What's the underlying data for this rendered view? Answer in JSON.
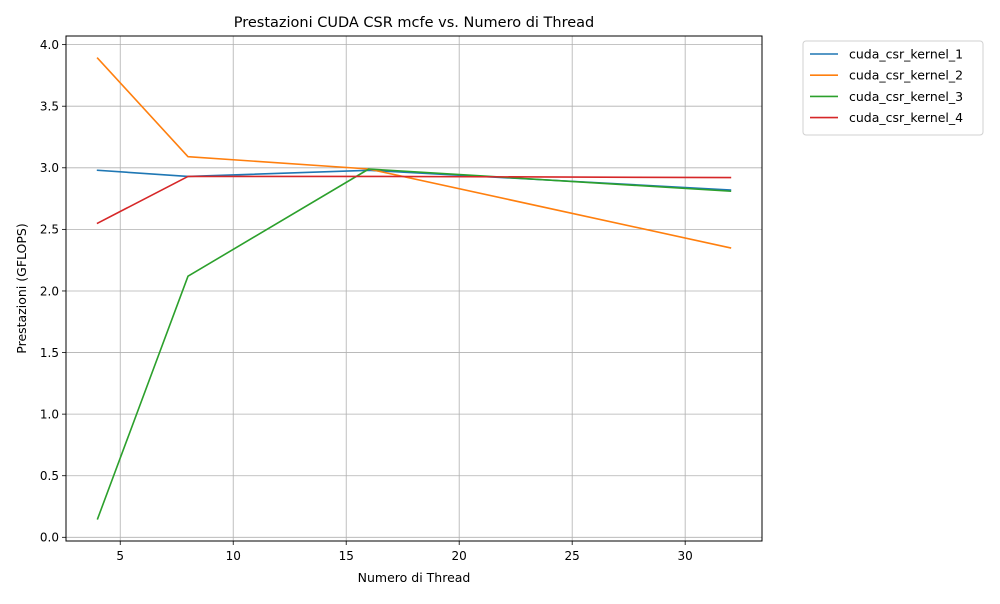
{
  "chart_data": {
    "type": "line",
    "title": "Prestazioni CUDA CSR mcfe vs. Numero di Thread",
    "xlabel": "Numero di Thread",
    "ylabel": "Prestazioni (GFLOPS)",
    "x": [
      4,
      8,
      16,
      32
    ],
    "xlim": [
      2.6,
      33.4
    ],
    "ylim": [
      -0.03,
      4.07
    ],
    "xticks": [
      5,
      10,
      15,
      20,
      25,
      30
    ],
    "yticks": [
      0.0,
      0.5,
      1.0,
      1.5,
      2.0,
      2.5,
      3.0,
      3.5,
      4.0
    ],
    "xtick_labels": [
      "5",
      "10",
      "15",
      "20",
      "25",
      "30"
    ],
    "ytick_labels": [
      "0.0",
      "0.5",
      "1.0",
      "1.5",
      "2.0",
      "2.5",
      "3.0",
      "3.5",
      "4.0"
    ],
    "grid": true,
    "legend_position": "outside-top-right",
    "series": [
      {
        "name": "cuda_csr_kernel_1",
        "color": "#1f77b4",
        "values": [
          2.98,
          2.93,
          2.98,
          2.82
        ]
      },
      {
        "name": "cuda_csr_kernel_2",
        "color": "#ff7f0e",
        "values": [
          3.89,
          3.09,
          2.99,
          2.35
        ]
      },
      {
        "name": "cuda_csr_kernel_3",
        "color": "#2ca02c",
        "values": [
          0.15,
          2.12,
          2.99,
          2.81
        ]
      },
      {
        "name": "cuda_csr_kernel_4",
        "color": "#d62728",
        "values": [
          2.55,
          2.93,
          2.93,
          2.92
        ]
      }
    ]
  }
}
